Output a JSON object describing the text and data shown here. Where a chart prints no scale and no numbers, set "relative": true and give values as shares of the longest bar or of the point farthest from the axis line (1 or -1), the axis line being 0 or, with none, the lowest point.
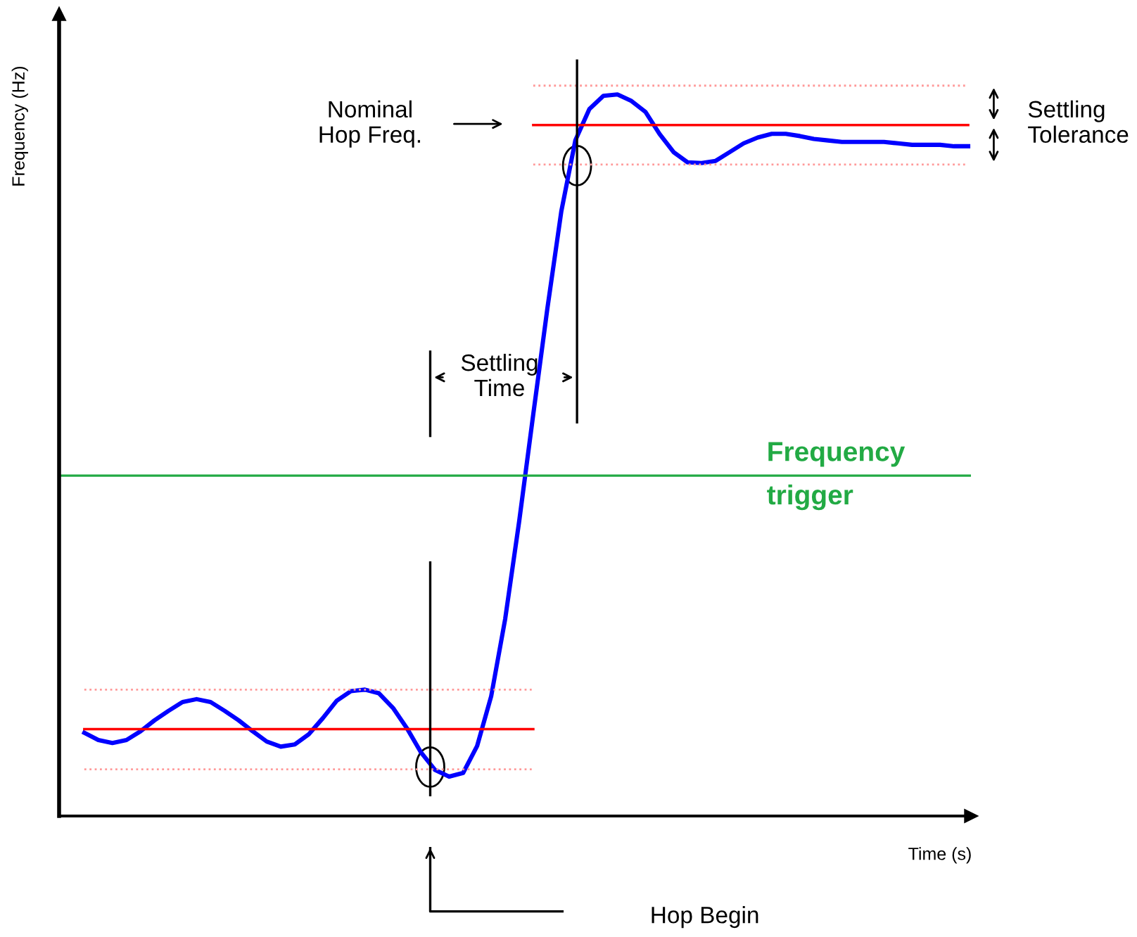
{
  "chart_data": {
    "type": "line",
    "relative": true,
    "legend": false,
    "marker": "none",
    "xlabel": "Time (s)",
    "ylabel": "Frequency (Hz)",
    "categories": [
      null,
      null,
      null,
      null,
      null,
      null,
      null,
      null,
      null,
      null,
      null,
      null,
      null,
      null,
      null,
      null,
      null,
      null,
      null,
      null,
      null,
      null,
      null,
      null,
      null,
      null,
      null,
      null,
      null,
      null,
      null,
      null,
      null,
      null,
      null,
      null,
      null,
      null,
      null,
      null,
      null,
      null,
      null,
      null,
      null,
      null,
      null,
      null,
      null,
      null,
      null,
      null,
      null,
      null,
      null,
      null,
      null,
      null,
      null,
      null,
      null,
      null,
      null,
      null
    ],
    "series": [
      {
        "color": "#0000ff",
        "line_style": "solid",
        "values": [
          0.114,
          0.104,
          0.1,
          0.104,
          0.116,
          0.131,
          0.144,
          0.156,
          0.16,
          0.156,
          0.144,
          0.131,
          0.116,
          0.102,
          0.095,
          0.098,
          0.112,
          0.134,
          0.158,
          0.171,
          0.173,
          0.168,
          0.148,
          0.12,
          0.087,
          0.063,
          0.054,
          0.059,
          0.096,
          0.164,
          0.27,
          0.404,
          0.55,
          0.694,
          0.828,
          0.925,
          0.968,
          0.986,
          0.988,
          0.979,
          0.964,
          0.934,
          0.909,
          0.895,
          0.894,
          0.897,
          0.909,
          0.921,
          0.929,
          0.934,
          0.934,
          0.931,
          0.927,
          0.925,
          0.923,
          0.923,
          0.923,
          0.923,
          0.921,
          0.919,
          0.919,
          0.919,
          0.917,
          0.917
        ]
      },
      {
        "color": "#ff0000",
        "line_style": "solid",
        "values": [
          0.119,
          0.119,
          0.119,
          0.119,
          0.119,
          0.119,
          0.119,
          0.119,
          0.119,
          0.119,
          0.119,
          0.119,
          0.119,
          0.119,
          0.119,
          0.119,
          0.119,
          0.119,
          0.119,
          0.119,
          0.119,
          0.119,
          0.119,
          0.119,
          0.119,
          0.119,
          0.119,
          0.119,
          0.119,
          0.119,
          0.119,
          0.119,
          0.119,
          null,
          null,
          null,
          null,
          null,
          null,
          null,
          null,
          null,
          null,
          null,
          null,
          null,
          null,
          null,
          null,
          null,
          null,
          null,
          null,
          null,
          null,
          null,
          null,
          null,
          null,
          null,
          null,
          null,
          null,
          null
        ]
      },
      {
        "color": "#ff9999",
        "line_style": "dotted",
        "values": [
          0.173,
          0.173,
          0.173,
          0.173,
          0.173,
          0.173,
          0.173,
          0.173,
          0.173,
          0.173,
          0.173,
          0.173,
          0.173,
          0.173,
          0.173,
          0.173,
          0.173,
          0.173,
          0.173,
          0.173,
          0.173,
          0.173,
          0.173,
          0.173,
          0.173,
          0.173,
          0.173,
          0.173,
          0.173,
          0.173,
          0.173,
          0.173,
          0.173,
          null,
          null,
          null,
          null,
          null,
          null,
          null,
          null,
          null,
          null,
          null,
          null,
          null,
          null,
          null,
          null,
          null,
          null,
          null,
          null,
          null,
          null,
          null,
          null,
          null,
          null,
          null,
          null,
          null,
          null,
          null
        ]
      },
      {
        "color": "#ff9999",
        "line_style": "dotted",
        "values": [
          0.064,
          0.064,
          0.064,
          0.064,
          0.064,
          0.064,
          0.064,
          0.064,
          0.064,
          0.064,
          0.064,
          0.064,
          0.064,
          0.064,
          0.064,
          0.064,
          0.064,
          0.064,
          0.064,
          0.064,
          0.064,
          0.064,
          0.064,
          0.064,
          0.064,
          0.064,
          0.064,
          0.064,
          0.064,
          0.064,
          0.064,
          0.064,
          0.064,
          null,
          null,
          null,
          null,
          null,
          null,
          null,
          null,
          null,
          null,
          null,
          null,
          null,
          null,
          null,
          null,
          null,
          null,
          null,
          null,
          null,
          null,
          null,
          null,
          null,
          null,
          null,
          null,
          null,
          null,
          null
        ]
      },
      {
        "color": "#ff0000",
        "line_style": "solid",
        "values": [
          null,
          null,
          null,
          null,
          null,
          null,
          null,
          null,
          null,
          null,
          null,
          null,
          null,
          null,
          null,
          null,
          null,
          null,
          null,
          null,
          null,
          null,
          null,
          null,
          null,
          null,
          null,
          null,
          null,
          null,
          null,
          null,
          0.946,
          0.946,
          0.946,
          0.946,
          0.946,
          0.946,
          0.946,
          0.946,
          0.946,
          0.946,
          0.946,
          0.946,
          0.946,
          0.946,
          0.946,
          0.946,
          0.946,
          0.946,
          0.946,
          0.946,
          0.946,
          0.946,
          0.946,
          0.946,
          0.946,
          0.946,
          0.946,
          0.946,
          0.946,
          0.946,
          0.946,
          0.946
        ]
      },
      {
        "color": "#ff9999",
        "line_style": "dotted",
        "values": [
          null,
          null,
          null,
          null,
          null,
          null,
          null,
          null,
          null,
          null,
          null,
          null,
          null,
          null,
          null,
          null,
          null,
          null,
          null,
          null,
          null,
          null,
          null,
          null,
          null,
          null,
          null,
          null,
          null,
          null,
          null,
          null,
          1.0,
          1.0,
          1.0,
          1.0,
          1.0,
          1.0,
          1.0,
          1.0,
          1.0,
          1.0,
          1.0,
          1.0,
          1.0,
          1.0,
          1.0,
          1.0,
          1.0,
          1.0,
          1.0,
          1.0,
          1.0,
          1.0,
          1.0,
          1.0,
          1.0,
          1.0,
          1.0,
          1.0,
          1.0,
          1.0,
          1.0,
          1.0
        ]
      },
      {
        "color": "#ff9999",
        "line_style": "dotted",
        "values": [
          null,
          null,
          null,
          null,
          null,
          null,
          null,
          null,
          null,
          null,
          null,
          null,
          null,
          null,
          null,
          null,
          null,
          null,
          null,
          null,
          null,
          null,
          null,
          null,
          null,
          null,
          null,
          null,
          null,
          null,
          null,
          null,
          0.892,
          0.892,
          0.892,
          0.892,
          0.892,
          0.892,
          0.892,
          0.892,
          0.892,
          0.892,
          0.892,
          0.892,
          0.892,
          0.892,
          0.892,
          0.892,
          0.892,
          0.892,
          0.892,
          0.892,
          0.892,
          0.892,
          0.892,
          0.892,
          0.892,
          0.892,
          0.892,
          0.892,
          0.892,
          0.892,
          0.892,
          0.892
        ]
      }
    ],
    "ref_lines": [
      {
        "axis": "y",
        "value": 0.466,
        "label": "Frequency\ntrigger",
        "color": "#22aa44",
        "line_style": "solid"
      }
    ],
    "annotations": [
      "Nominal\nHop Freq.",
      "Settling\nTolerance",
      "Settling\nTime",
      "Hop Begin"
    ]
  }
}
